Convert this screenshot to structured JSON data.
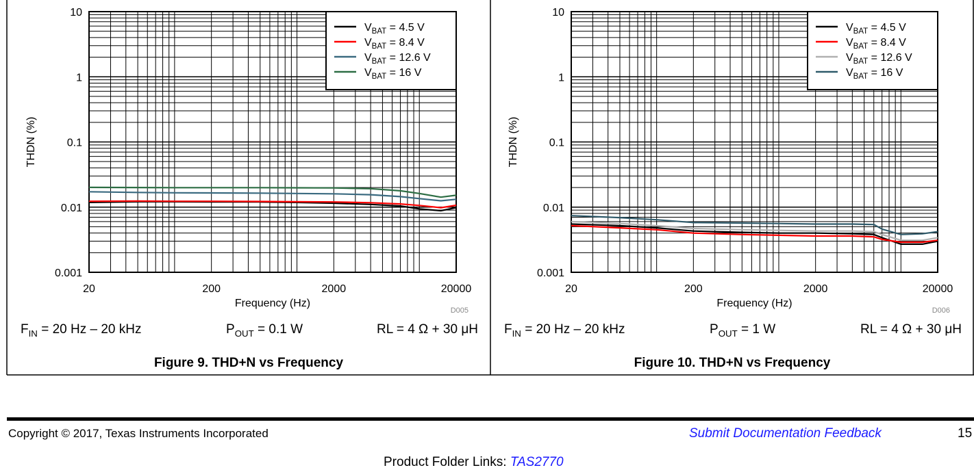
{
  "chart_data": [
    {
      "type": "line",
      "figure_id": "D005",
      "caption": "Figure 9. THD+N vs Frequency",
      "xlabel": "Frequency (Hz)",
      "ylabel": "THDN (%)",
      "x_scale": "log",
      "y_scale": "log",
      "xlim": [
        20,
        20000
      ],
      "ylim": [
        0.001,
        10
      ],
      "x_ticks": [
        "20",
        "200",
        "2000",
        "20000"
      ],
      "y_ticks": [
        "0.001",
        "0.01",
        "0.1",
        "1",
        "10"
      ],
      "grid": true,
      "legend_position": "top-right",
      "conditions": {
        "fin": "= 20 Hz – 20 kHz",
        "pout": "= 0.1 W",
        "rl": "RL = 4 Ω + 30 μH"
      },
      "x": [
        20,
        50,
        100,
        200,
        500,
        1000,
        2000,
        4000,
        7000,
        10000,
        15000,
        20000
      ],
      "series": [
        {
          "name": "= 4.5 V",
          "color": "#000000",
          "values": [
            0.0118,
            0.0121,
            0.0121,
            0.012,
            0.012,
            0.0118,
            0.0115,
            0.011,
            0.0104,
            0.0094,
            0.0088,
            0.0098
          ]
        },
        {
          "name": "= 8.4 V",
          "color": "#ff0000",
          "values": [
            0.0123,
            0.0124,
            0.0123,
            0.0123,
            0.0122,
            0.0121,
            0.012,
            0.0117,
            0.0112,
            0.0106,
            0.0098,
            0.0107
          ]
        },
        {
          "name": "= 12.6 V",
          "color": "#3a6a80",
          "values": [
            0.0172,
            0.0168,
            0.0166,
            0.0165,
            0.0164,
            0.0162,
            0.016,
            0.0155,
            0.0145,
            0.0135,
            0.0125,
            0.0132
          ]
        },
        {
          "name": "= 16 V",
          "color": "#2d6e44",
          "values": [
            0.0201,
            0.02,
            0.0199,
            0.0199,
            0.0199,
            0.0198,
            0.0197,
            0.0192,
            0.0178,
            0.0162,
            0.0142,
            0.0152
          ]
        }
      ]
    },
    {
      "type": "line",
      "figure_id": "D006",
      "caption": "Figure 10. THD+N vs Frequency",
      "xlabel": "Frequency (Hz)",
      "ylabel": "THDN (%)",
      "x_scale": "log",
      "y_scale": "log",
      "xlim": [
        20,
        20000
      ],
      "ylim": [
        0.001,
        10
      ],
      "x_ticks": [
        "20",
        "200",
        "2000",
        "20000"
      ],
      "y_ticks": [
        "0.001",
        "0.01",
        "0.1",
        "1",
        "10"
      ],
      "grid": true,
      "legend_position": "top-right",
      "conditions": {
        "fin": "= 20 Hz – 20 kHz",
        "pout": "= 1 W",
        "rl": "RL = 4 Ω + 30 μH"
      },
      "x": [
        20,
        50,
        100,
        200,
        500,
        1000,
        2000,
        4000,
        6000,
        7000,
        10000,
        15000,
        20000
      ],
      "series": [
        {
          "name": "= 4.5 V",
          "color": "#000000",
          "values": [
            0.0055,
            0.0052,
            0.0048,
            0.0043,
            0.0041,
            0.004,
            0.004,
            0.0039,
            0.0038,
            0.0034,
            0.0027,
            0.0027,
            0.003
          ]
        },
        {
          "name": "= 8.4 V",
          "color": "#ff0000",
          "values": [
            0.0052,
            0.0048,
            0.0045,
            0.004,
            0.0038,
            0.0037,
            0.0036,
            0.0036,
            0.0035,
            0.0032,
            0.0029,
            0.0029,
            0.0031
          ]
        },
        {
          "name": "= 12.6 V",
          "color": "#b0b0b0",
          "values": [
            0.006,
            0.0056,
            0.0052,
            0.0047,
            0.0045,
            0.0044,
            0.0043,
            0.0043,
            0.0042,
            0.0038,
            0.0031,
            0.0031,
            0.0034
          ]
        },
        {
          "name": "= 16 V",
          "color": "#2f5a6a",
          "values": [
            0.0074,
            0.0069,
            0.0064,
            0.0058,
            0.0057,
            0.0056,
            0.0055,
            0.0055,
            0.0054,
            0.0046,
            0.0038,
            0.0039,
            0.0042
          ]
        }
      ]
    }
  ],
  "footer": {
    "copyright": "Copyright © 2017, Texas Instruments Incorporated",
    "feedback": "Submit Documentation Feedback",
    "page_number": "15",
    "folder_label": "Product Folder Links:",
    "folder_link": "TAS2770"
  }
}
